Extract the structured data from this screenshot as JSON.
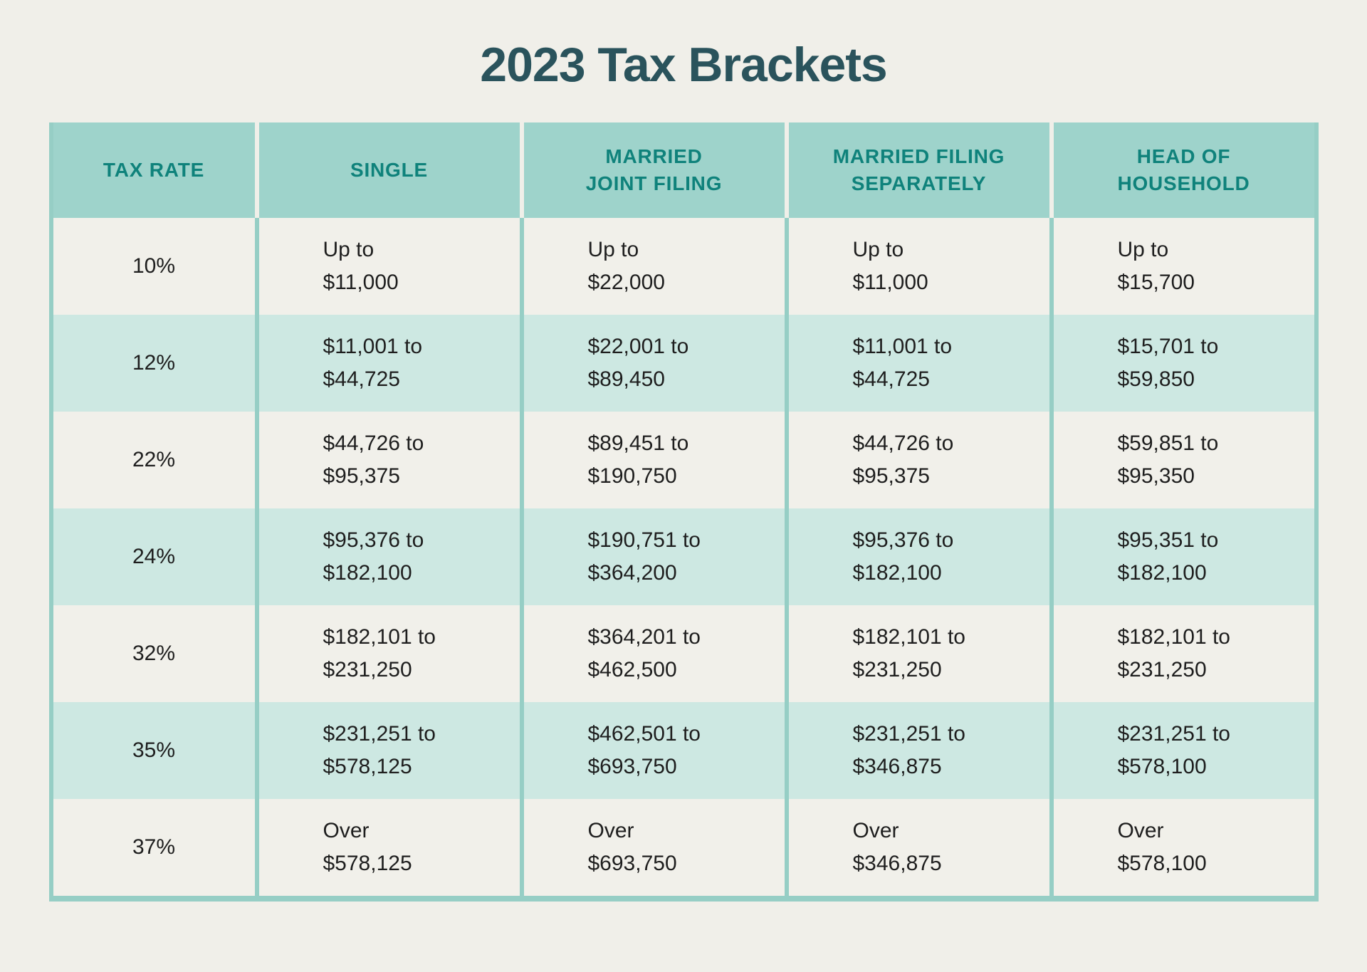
{
  "title": "2023 Tax Brackets",
  "colors": {
    "background": "#F0EFE9",
    "header_bg": "#9ED3CB",
    "header_text": "#0F827B",
    "row_bg": "#F1F0EA",
    "row_alt_bg": "#CDE8E2",
    "divider": "#96CEC5",
    "title_text": "#2A535C",
    "body_text": "#1E1E1E"
  },
  "table": {
    "columns": [
      "TAX RATE",
      "SINGLE",
      "MARRIED\nJOINT FILING",
      "MARRIED FILING\nSEPARATELY",
      "HEAD OF\nHOUSEHOLD"
    ],
    "rows": [
      {
        "rate": "10%",
        "cells": [
          "Up to\n$11,000",
          "Up to\n$22,000",
          "Up to\n$11,000",
          "Up to\n$15,700"
        ]
      },
      {
        "rate": "12%",
        "cells": [
          "$11,001 to\n$44,725",
          "$22,001 to\n$89,450",
          "$11,001 to\n$44,725",
          "$15,701 to\n$59,850"
        ]
      },
      {
        "rate": "22%",
        "cells": [
          "$44,726 to\n$95,375",
          "$89,451 to\n$190,750",
          "$44,726 to\n$95,375",
          "$59,851 to\n$95,350"
        ]
      },
      {
        "rate": "24%",
        "cells": [
          "$95,376 to\n$182,100",
          "$190,751 to\n$364,200",
          "$95,376 to\n$182,100",
          "$95,351 to\n$182,100"
        ]
      },
      {
        "rate": "32%",
        "cells": [
          "$182,101 to\n$231,250",
          "$364,201 to\n$462,500",
          "$182,101 to\n$231,250",
          "$182,101 to\n$231,250"
        ]
      },
      {
        "rate": "35%",
        "cells": [
          "$231,251 to\n$578,125",
          "$462,501 to\n$693,750",
          "$231,251 to\n$346,875",
          "$231,251 to\n$578,100"
        ]
      },
      {
        "rate": "37%",
        "cells": [
          "Over\n$578,125",
          "Over\n$693,750",
          "Over\n$346,875",
          "Over\n$578,100"
        ]
      }
    ]
  },
  "chart_data": {
    "type": "table",
    "title": "2023 Tax Brackets",
    "columns": [
      "TAX RATE",
      "SINGLE",
      "MARRIED JOINT FILING",
      "MARRIED FILING SEPARATELY",
      "HEAD OF HOUSEHOLD"
    ],
    "rows": [
      [
        "10%",
        "Up to $11,000",
        "Up to $22,000",
        "Up to $11,000",
        "Up to $15,700"
      ],
      [
        "12%",
        "$11,001 to $44,725",
        "$22,001 to $89,450",
        "$11,001 to $44,725",
        "$15,701 to $59,850"
      ],
      [
        "22%",
        "$44,726 to $95,375",
        "$89,451 to $190,750",
        "$44,726 to $95,375",
        "$59,851 to $95,350"
      ],
      [
        "24%",
        "$95,376 to $182,100",
        "$190,751 to $364,200",
        "$95,376 to $182,100",
        "$95,351 to $182,100"
      ],
      [
        "32%",
        "$182,101 to $231,250",
        "$364,201 to $462,500",
        "$182,101 to $231,250",
        "$182,101 to $231,250"
      ],
      [
        "35%",
        "$231,251 to $578,125",
        "$462,501 to $693,750",
        "$231,251 to $346,875",
        "$231,251 to $578,100"
      ],
      [
        "37%",
        "Over $578,125",
        "Over $693,750",
        "Over $346,875",
        "Over $578,100"
      ]
    ]
  }
}
